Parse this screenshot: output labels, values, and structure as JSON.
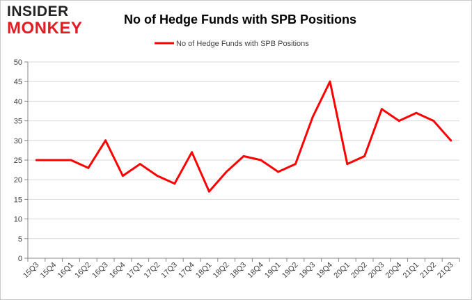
{
  "logo": {
    "line1": "INSIDER",
    "line2": "MONKEY"
  },
  "chart_data": {
    "type": "line",
    "title": "No of Hedge Funds with SPB Positions",
    "xlabel": "",
    "ylabel": "",
    "categories": [
      "15Q3",
      "15Q4",
      "16Q1",
      "16Q2",
      "16Q3",
      "16Q4",
      "17Q1",
      "17Q2",
      "17Q3",
      "17Q4",
      "18Q1",
      "18Q2",
      "18Q3",
      "18Q4",
      "19Q1",
      "19Q2",
      "19Q3",
      "19Q4",
      "20Q1",
      "20Q2",
      "20Q3",
      "20Q4",
      "21Q1",
      "21Q2",
      "21Q3"
    ],
    "series": [
      {
        "name": "No of Hedge Funds with SPB Positions",
        "color": "#ff0000",
        "values": [
          25,
          25,
          25,
          23,
          30,
          21,
          24,
          21,
          19,
          27,
          17,
          22,
          26,
          25,
          22,
          24,
          36,
          45,
          24,
          26,
          38,
          35,
          37,
          35,
          30
        ]
      }
    ],
    "ylim": [
      0,
      50
    ],
    "yticks": [
      0,
      5,
      10,
      15,
      20,
      25,
      30,
      35,
      40,
      45,
      50
    ],
    "grid": true,
    "legend_position": "top-center"
  },
  "colors": {
    "axis": "#868686",
    "grid": "#d9d9d9",
    "text": "#404040",
    "title": "#000000"
  }
}
